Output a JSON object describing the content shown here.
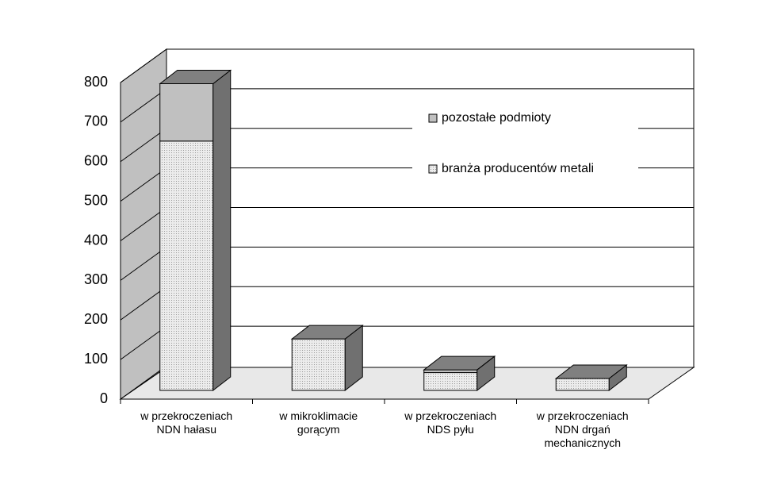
{
  "chart_data": {
    "type": "bar3d_stacked",
    "categories": [
      "w przekroczeniach\nNDN hałasu",
      "w mikroklimacie\ngorącym",
      "w przekroczeniach\nNDS pyłu",
      "w przekroczeniach\nNDN drgań\nmechanicznych"
    ],
    "series": [
      {
        "name": "branża producentów metali",
        "color": "#e6e6e6",
        "values": [
          630,
          130,
          45,
          30
        ]
      },
      {
        "name": "pozostałe podmioty",
        "color": "#c0c0c0",
        "values": [
          145,
          0,
          7,
          0
        ]
      }
    ],
    "ylim": [
      0,
      800
    ],
    "yticks": [
      0,
      100,
      200,
      300,
      400,
      500,
      600,
      700,
      800
    ],
    "grid": true
  }
}
